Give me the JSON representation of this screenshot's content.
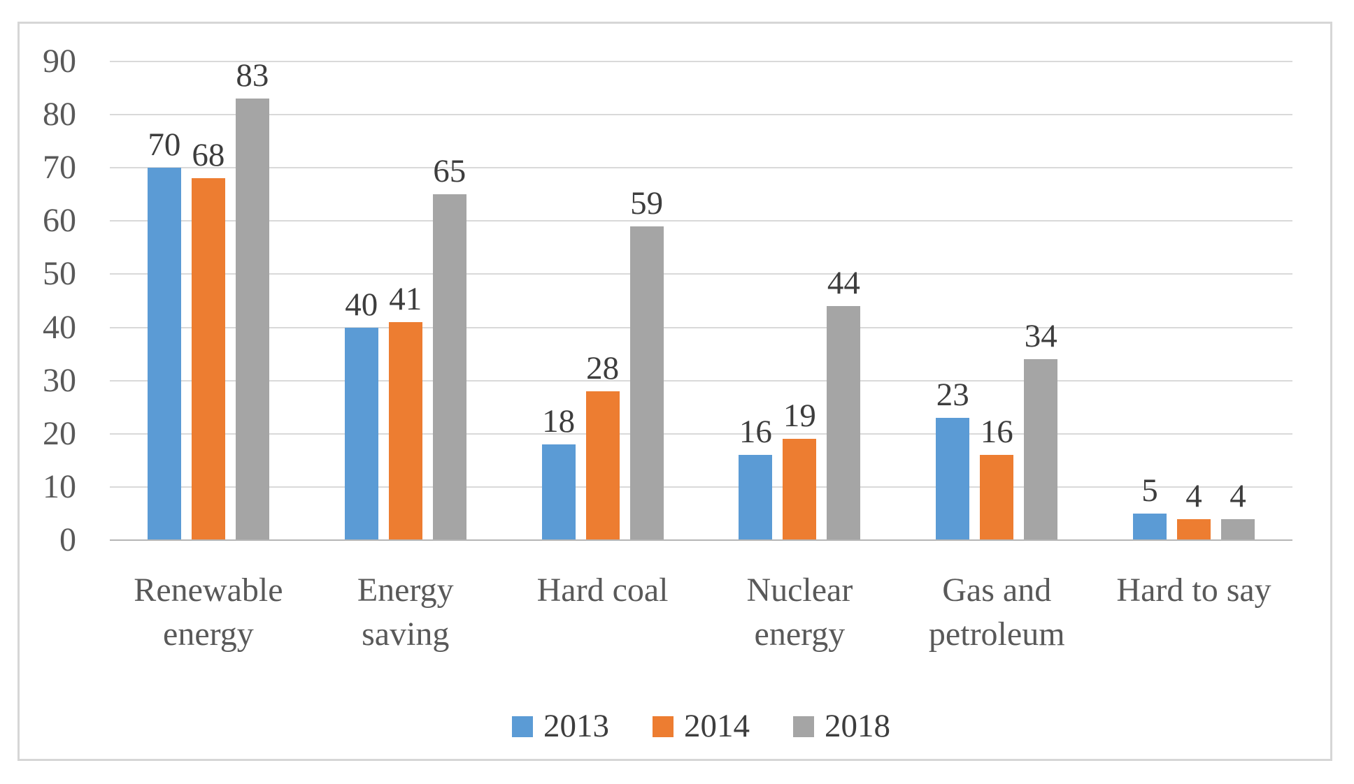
{
  "chart_data": {
    "type": "bar",
    "title": "",
    "xlabel": "",
    "ylabel": "",
    "categories": [
      "Renewable\nenergy",
      "Energy\nsaving",
      "Hard coal",
      "Nuclear\nenergy",
      "Gas and\npetroleum",
      "Hard to say"
    ],
    "series": [
      {
        "name": "2013",
        "color": "#5B9BD5",
        "values": [
          70,
          40,
          18,
          16,
          23,
          5
        ]
      },
      {
        "name": "2014",
        "color": "#ED7D31",
        "values": [
          68,
          41,
          28,
          19,
          16,
          4
        ]
      },
      {
        "name": "2018",
        "color": "#A5A5A5",
        "values": [
          83,
          65,
          59,
          44,
          34,
          4
        ]
      }
    ],
    "y_axis": {
      "min": 0,
      "max": 90,
      "step": 10,
      "tick_labels": [
        "0",
        "10",
        "20",
        "30",
        "40",
        "50",
        "60",
        "70",
        "80",
        "90"
      ]
    },
    "data_labels": true,
    "grid": true,
    "legend_position": "bottom"
  },
  "style": {
    "bar_blue": "#5B9BD5",
    "bar_orange": "#ED7D31",
    "bar_gray": "#A5A5A5",
    "gridline_color": "#d9d9d9",
    "axis_line_color": "#b5b5b5",
    "tick_text_color": "#595959",
    "category_text_color": "#595959",
    "data_label_color": "#3d3d3d",
    "frame_border_color": "#d6d6d6",
    "background": "#ffffff"
  }
}
